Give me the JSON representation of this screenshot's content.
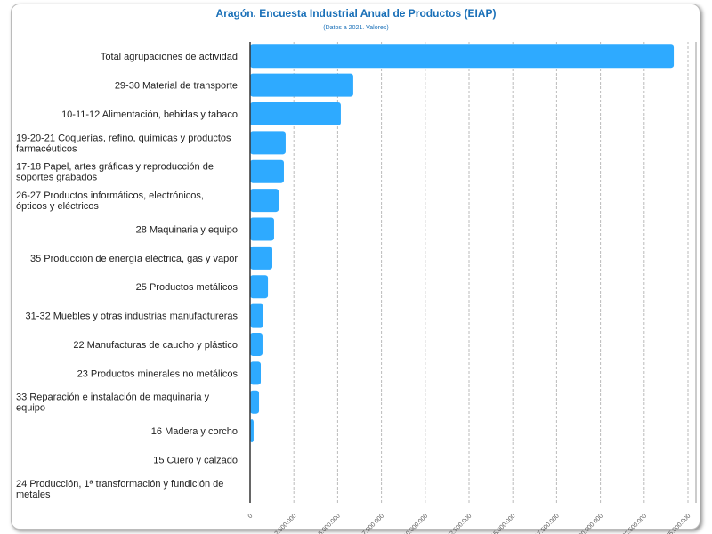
{
  "chart_data": {
    "type": "bar",
    "orientation": "horizontal",
    "title": "Aragón. Encuesta Industrial Anual de Productos (EIAP)",
    "subtitle": "(Datos a 2021. Valores)",
    "xlabel": "",
    "ylabel": "",
    "xlim": [
      0,
      25000000
    ],
    "grid": true,
    "bar_color": "#2eaaff",
    "ticks": [
      "0",
      "2.500.000",
      "5.000.000",
      "7.500.000",
      "10.000.000",
      "12.500.000",
      "15.000.000",
      "17.500.000",
      "20.000.000",
      "22.500.000",
      "25.000.000"
    ],
    "categories": [
      [
        "Total agrupaciones de actividad"
      ],
      [
        "29-30 Material de transporte"
      ],
      [
        "10-11-12 Alimentación, bebidas y tabaco"
      ],
      [
        "19-20-21 Coquerías, refino, químicas y productos",
        "farmacéuticos"
      ],
      [
        "17-18 Papel, artes gráficas y reproducción de",
        "soportes grabados"
      ],
      [
        "26-27 Productos informáticos, electrónicos,",
        "ópticos y eléctricos"
      ],
      [
        "28 Maquinaria y equipo"
      ],
      [
        "35 Producción de energía eléctrica, gas y vapor"
      ],
      [
        "25 Productos metálicos"
      ],
      [
        "31-32 Muebles y otras industrias manufactureras"
      ],
      [
        "22 Manufacturas de caucho y plástico"
      ],
      [
        "23 Productos minerales no metálicos"
      ],
      [
        "33 Reparación e instalación de maquinaria y",
        "equipo"
      ],
      [
        "16 Madera y corcho"
      ],
      [
        "15 Cuero y calzado"
      ],
      [
        "24 Producción, 1ª transformación y fundición de",
        "metales"
      ]
    ],
    "values": [
      24190000,
      5890000,
      5180000,
      2030000,
      1930000,
      1630000,
      1370000,
      1270000,
      1020000,
      760000,
      710000,
      610000,
      510000,
      200000,
      10000,
      5000
    ]
  }
}
